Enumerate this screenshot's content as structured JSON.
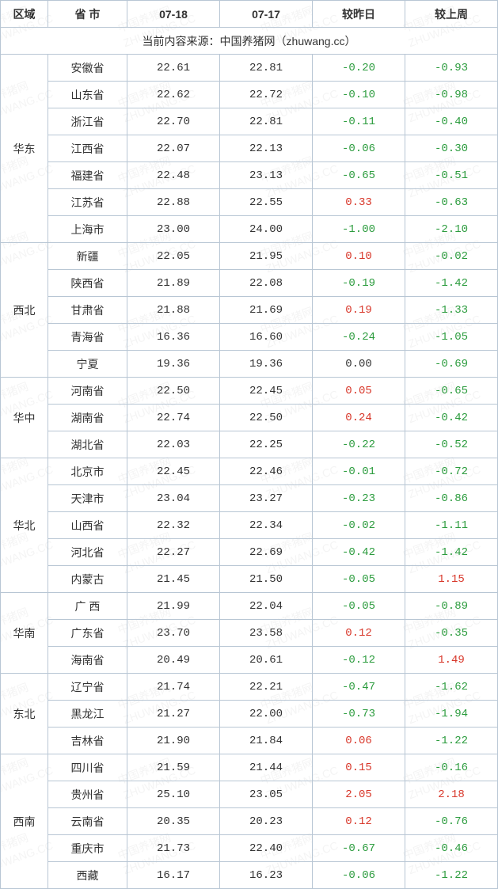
{
  "headers": {
    "region": "区域",
    "province": "省 市",
    "date1": "07-18",
    "date2": "07-17",
    "vs_yesterday": "较昨日",
    "vs_lastweek": "较上周"
  },
  "source": "当前内容来源：中国养猪网（zhuwang.cc）",
  "watermark_text": "中国养猪网\nZHUWANG.CC",
  "colors": {
    "border": "#b8c6d4",
    "positive": "#d8372a",
    "negative": "#2c9c3e",
    "neutral": "#333333"
  },
  "regions": [
    {
      "name": "华东",
      "rows": [
        {
          "province": "安徽省",
          "d1": "22.61",
          "d2": "22.81",
          "dy": "-0.20",
          "dw": "-0.93"
        },
        {
          "province": "山东省",
          "d1": "22.62",
          "d2": "22.72",
          "dy": "-0.10",
          "dw": "-0.98"
        },
        {
          "province": "浙江省",
          "d1": "22.70",
          "d2": "22.81",
          "dy": "-0.11",
          "dw": "-0.40"
        },
        {
          "province": "江西省",
          "d1": "22.07",
          "d2": "22.13",
          "dy": "-0.06",
          "dw": "-0.30"
        },
        {
          "province": "福建省",
          "d1": "22.48",
          "d2": "23.13",
          "dy": "-0.65",
          "dw": "-0.51"
        },
        {
          "province": "江苏省",
          "d1": "22.88",
          "d2": "22.55",
          "dy": "0.33",
          "dw": "-0.63"
        },
        {
          "province": "上海市",
          "d1": "23.00",
          "d2": "24.00",
          "dy": "-1.00",
          "dw": "-2.10"
        }
      ]
    },
    {
      "name": "西北",
      "rows": [
        {
          "province": "新疆",
          "d1": "22.05",
          "d2": "21.95",
          "dy": "0.10",
          "dw": "-0.02"
        },
        {
          "province": "陕西省",
          "d1": "21.89",
          "d2": "22.08",
          "dy": "-0.19",
          "dw": "-1.42"
        },
        {
          "province": "甘肃省",
          "d1": "21.88",
          "d2": "21.69",
          "dy": "0.19",
          "dw": "-1.33"
        },
        {
          "province": "青海省",
          "d1": "16.36",
          "d2": "16.60",
          "dy": "-0.24",
          "dw": "-1.05"
        },
        {
          "province": "宁夏",
          "d1": "19.36",
          "d2": "19.36",
          "dy": "0.00",
          "dw": "-0.69"
        }
      ]
    },
    {
      "name": "华中",
      "rows": [
        {
          "province": "河南省",
          "d1": "22.50",
          "d2": "22.45",
          "dy": "0.05",
          "dw": "-0.65"
        },
        {
          "province": "湖南省",
          "d1": "22.74",
          "d2": "22.50",
          "dy": "0.24",
          "dw": "-0.42"
        },
        {
          "province": "湖北省",
          "d1": "22.03",
          "d2": "22.25",
          "dy": "-0.22",
          "dw": "-0.52"
        }
      ]
    },
    {
      "name": "华北",
      "rows": [
        {
          "province": "北京市",
          "d1": "22.45",
          "d2": "22.46",
          "dy": "-0.01",
          "dw": "-0.72"
        },
        {
          "province": "天津市",
          "d1": "23.04",
          "d2": "23.27",
          "dy": "-0.23",
          "dw": "-0.86"
        },
        {
          "province": "山西省",
          "d1": "22.32",
          "d2": "22.34",
          "dy": "-0.02",
          "dw": "-1.11"
        },
        {
          "province": "河北省",
          "d1": "22.27",
          "d2": "22.69",
          "dy": "-0.42",
          "dw": "-1.42"
        },
        {
          "province": "内蒙古",
          "d1": "21.45",
          "d2": "21.50",
          "dy": "-0.05",
          "dw": "1.15"
        }
      ]
    },
    {
      "name": "华南",
      "rows": [
        {
          "province": "广 西",
          "d1": "21.99",
          "d2": "22.04",
          "dy": "-0.05",
          "dw": "-0.89"
        },
        {
          "province": "广东省",
          "d1": "23.70",
          "d2": "23.58",
          "dy": "0.12",
          "dw": "-0.35"
        },
        {
          "province": "海南省",
          "d1": "20.49",
          "d2": "20.61",
          "dy": "-0.12",
          "dw": "1.49"
        }
      ]
    },
    {
      "name": "东北",
      "rows": [
        {
          "province": "辽宁省",
          "d1": "21.74",
          "d2": "22.21",
          "dy": "-0.47",
          "dw": "-1.62"
        },
        {
          "province": "黑龙江",
          "d1": "21.27",
          "d2": "22.00",
          "dy": "-0.73",
          "dw": "-1.94"
        },
        {
          "province": "吉林省",
          "d1": "21.90",
          "d2": "21.84",
          "dy": "0.06",
          "dw": "-1.22"
        }
      ]
    },
    {
      "name": "西南",
      "rows": [
        {
          "province": "四川省",
          "d1": "21.59",
          "d2": "21.44",
          "dy": "0.15",
          "dw": "-0.16"
        },
        {
          "province": "贵州省",
          "d1": "25.10",
          "d2": "23.05",
          "dy": "2.05",
          "dw": "2.18"
        },
        {
          "province": "云南省",
          "d1": "20.35",
          "d2": "20.23",
          "dy": "0.12",
          "dw": "-0.76"
        },
        {
          "province": "重庆市",
          "d1": "21.73",
          "d2": "22.40",
          "dy": "-0.67",
          "dw": "-0.46"
        },
        {
          "province": "西藏",
          "d1": "16.17",
          "d2": "16.23",
          "dy": "-0.06",
          "dw": "-1.22"
        }
      ]
    }
  ]
}
